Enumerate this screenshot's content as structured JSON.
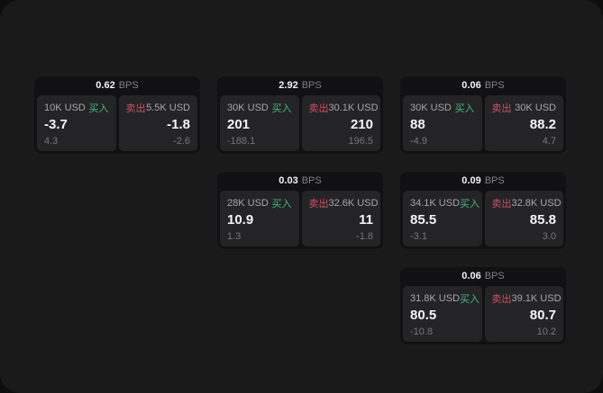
{
  "colors": {
    "page_bg": "#0e0e0e",
    "surface_bg": "#1a1a1b",
    "card_bg": "#111113",
    "pane_bg": "#242427",
    "buy": "#43b97c",
    "sell": "#d04f63"
  },
  "labels": {
    "bps_unit": "BPS",
    "buy": "买入",
    "sell": "卖出"
  },
  "cards": [
    {
      "row": 1,
      "col": 1,
      "bps": "0.62",
      "buy": {
        "amount": "10K USD",
        "price": "-3.7",
        "delta": "4.3"
      },
      "sell": {
        "amount": "5.5K USD",
        "price": "-1.8",
        "delta": "-2.6"
      }
    },
    {
      "row": 1,
      "col": 2,
      "bps": "2.92",
      "buy": {
        "amount": "30K USD",
        "price": "201",
        "delta": "-188.1"
      },
      "sell": {
        "amount": "30.1K USD",
        "price": "210",
        "delta": "196.5"
      }
    },
    {
      "row": 1,
      "col": 3,
      "bps": "0.06",
      "buy": {
        "amount": "30K USD",
        "price": "88",
        "delta": "-4.9"
      },
      "sell": {
        "amount": "30K USD",
        "price": "88.2",
        "delta": "4.7"
      }
    },
    {
      "row": 2,
      "col": 2,
      "bps": "0.03",
      "buy": {
        "amount": "28K USD",
        "price": "10.9",
        "delta": "1.3"
      },
      "sell": {
        "amount": "32.6K USD",
        "price": "11",
        "delta": "-1.8"
      }
    },
    {
      "row": 2,
      "col": 3,
      "bps": "0.09",
      "buy": {
        "amount": "34.1K USD",
        "price": "85.5",
        "delta": "-3.1"
      },
      "sell": {
        "amount": "32.8K USD",
        "price": "85.8",
        "delta": "3.0"
      }
    },
    {
      "row": 3,
      "col": 3,
      "bps": "0.06",
      "buy": {
        "amount": "31.8K USD",
        "price": "80.5",
        "delta": "-10.8"
      },
      "sell": {
        "amount": "39.1K USD",
        "price": "80.7",
        "delta": "10.2"
      }
    }
  ]
}
